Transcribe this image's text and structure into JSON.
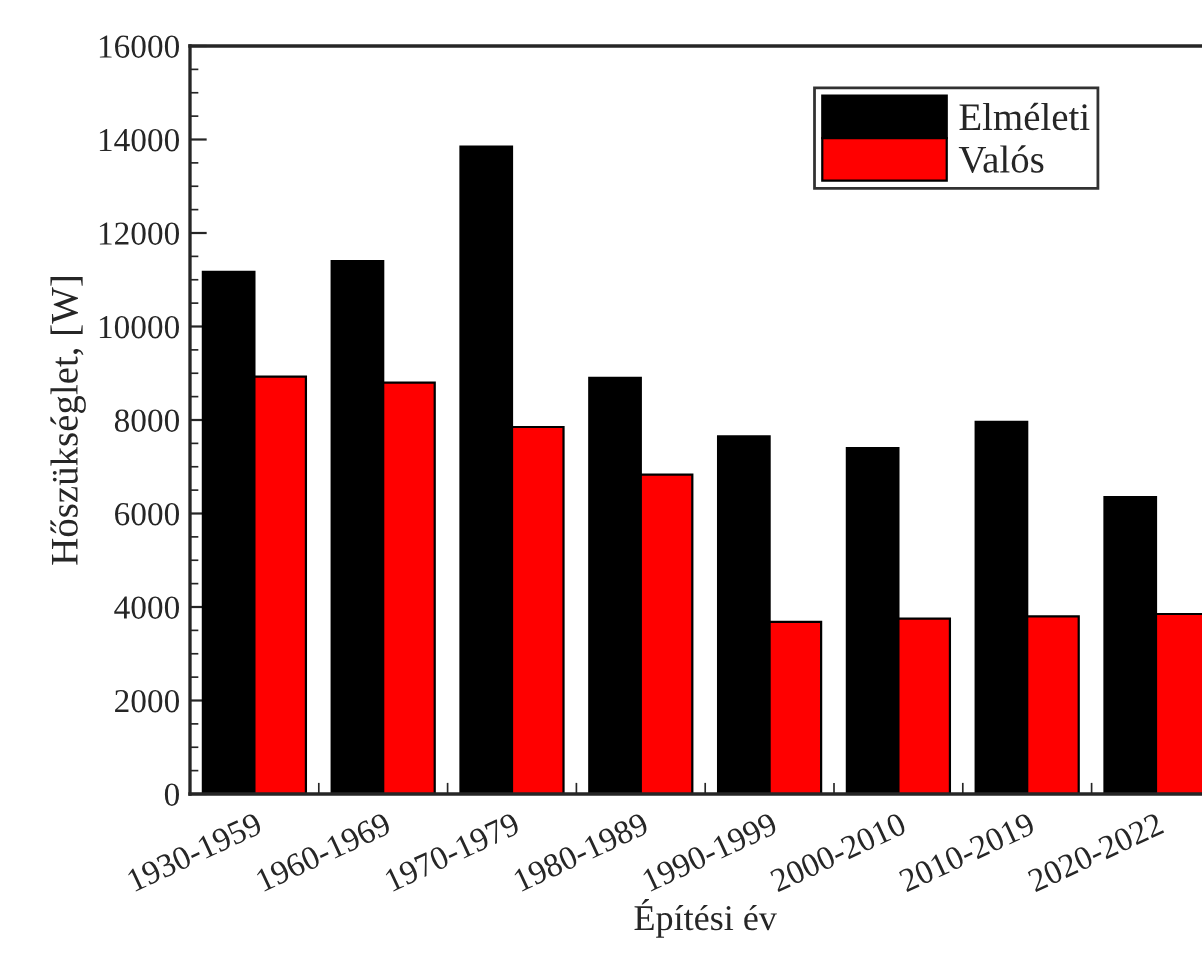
{
  "chart_data": {
    "type": "bar",
    "xlabel": "Építési év",
    "ylabel": "Hőszükséglet, [W]",
    "categories": [
      "1930-1959",
      "1960-1969",
      "1970-1979",
      "1980-1989",
      "1990-1999",
      "2000-2010",
      "2010-2019",
      "2020-2022"
    ],
    "series": [
      {
        "name": "Elméleti",
        "color": "#000000",
        "values": [
          11170,
          11400,
          13850,
          8900,
          7650,
          7400,
          7960,
          6350
        ]
      },
      {
        "name": "Valós",
        "color": "#ff0000",
        "values": [
          8930,
          8800,
          7850,
          6830,
          3680,
          3750,
          3800,
          3850
        ]
      }
    ],
    "ylim": [
      0,
      16000
    ],
    "yticks": [
      0,
      2000,
      4000,
      6000,
      8000,
      10000,
      12000,
      14000,
      16000
    ],
    "grid": false,
    "legend": "top right"
  }
}
